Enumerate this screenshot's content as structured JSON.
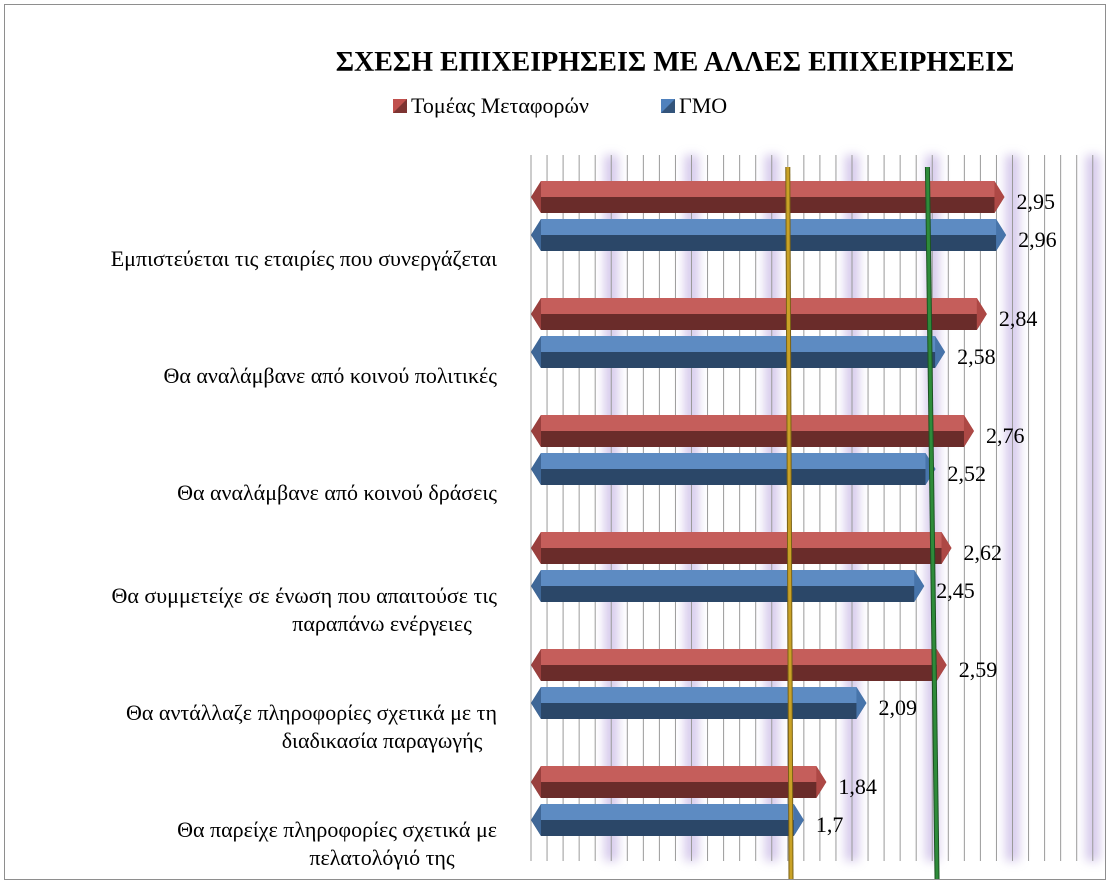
{
  "chart_data": {
    "type": "bar",
    "orientation": "horizontal",
    "title": "ΣΧΕΣΗ ΕΠΙΧΕΙΡΗΣΕΙΣ ΜΕ ΑΛΛΕΣ ΕΠΙΧΕΙΡΗΣΕΙΣ",
    "legend_position": "top",
    "grid": true,
    "xlim": [
      0,
      3.6
    ],
    "categories": [
      [
        "Εμπιστεύεται τις εταιρίες που συνεργάζεται"
      ],
      [
        "Θα αναλάμβανε από κοινού πολιτικές"
      ],
      [
        "Θα αναλάμβανε από κοινού δράσεις"
      ],
      [
        "Θα συμμετείχε σε  ένωση  που απαιτούσε τις",
        "παραπάνω ενέργειες"
      ],
      [
        "Θα αντάλλαζε πληροφορίες σχετικά με τη",
        "διαδικασία παραγωγής"
      ],
      [
        "Θα παρείχε πληροφορίες σχετικά με",
        "πελατολόγιό της"
      ]
    ],
    "series": [
      {
        "name": "Τομέας Μεταφορών",
        "color": "#c0504d",
        "values": [
          2.95,
          2.84,
          2.76,
          2.62,
          2.59,
          1.84
        ],
        "labels": [
          "2,95",
          "2,84",
          "2,76",
          "2,62",
          "2,59",
          "1,84"
        ]
      },
      {
        "name": "ΓΜΟ",
        "color": "#4f81bd",
        "values": [
          2.96,
          2.58,
          2.52,
          2.45,
          2.09,
          1.7
        ],
        "labels": [
          "2,96",
          "2,58",
          "2,52",
          "2,45",
          "2,09",
          "1,7"
        ]
      }
    ],
    "reference_lines": [
      {
        "name": "mean-line-gold",
        "color": "#c9a227",
        "x_top": 1.6,
        "x_bottom": 1.62
      },
      {
        "name": "mean-line-green",
        "color": "#2e8b3a",
        "x_top": 2.47,
        "x_bottom": 2.53
      }
    ]
  }
}
